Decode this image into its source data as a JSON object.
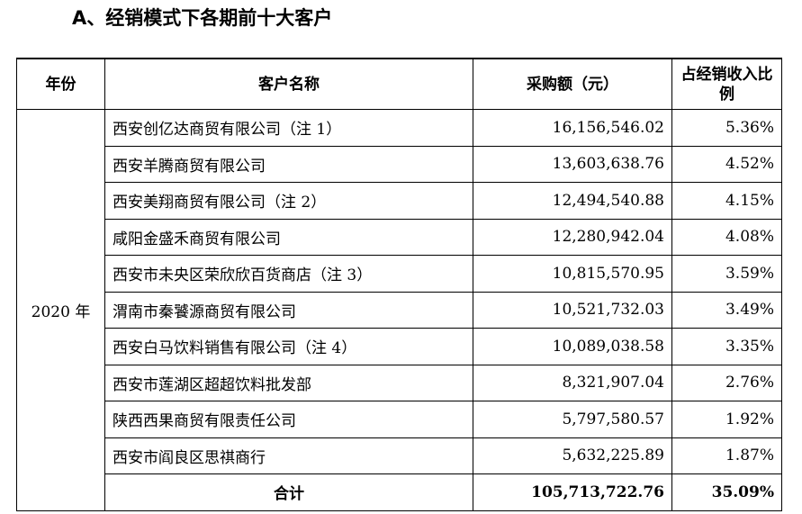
{
  "heading": "A、经销模式下各期前十大客户",
  "table": {
    "headers": {
      "year": "年份",
      "name": "客户名称",
      "amount": "采购额（元）",
      "ratio": "占经销收入比例"
    },
    "year": "2020 年",
    "rows": [
      {
        "name": "西安创亿达商贸有限公司（注 1）",
        "amount": "16,156,546.02",
        "ratio": "5.36%"
      },
      {
        "name": "西安羊腾商贸有限公司",
        "amount": "13,603,638.76",
        "ratio": "4.52%"
      },
      {
        "name": "西安美翔商贸有限公司（注 2）",
        "amount": "12,494,540.88",
        "ratio": "4.15%"
      },
      {
        "name": "咸阳金盛禾商贸有限公司",
        "amount": "12,280,942.04",
        "ratio": "4.08%"
      },
      {
        "name": "西安市未央区荣欣欣百货商店（注 3）",
        "amount": "10,815,570.95",
        "ratio": "3.59%"
      },
      {
        "name": "渭南市秦饕源商贸有限公司",
        "amount": "10,521,732.03",
        "ratio": "3.49%"
      },
      {
        "name": "西安白马饮料销售有限公司（注 4）",
        "amount": "10,089,038.58",
        "ratio": "3.35%"
      },
      {
        "name": "西安市莲湖区超超饮料批发部",
        "amount": "8,321,907.04",
        "ratio": "2.76%"
      },
      {
        "name": "陕西西果商贸有限责任公司",
        "amount": "5,797,580.57",
        "ratio": "1.92%"
      },
      {
        "name": "西安市阎良区思祺商行",
        "amount": "5,632,225.89",
        "ratio": "1.87%"
      }
    ],
    "total": {
      "label": "合计",
      "amount": "105,713,722.76",
      "ratio": "35.09%"
    }
  }
}
